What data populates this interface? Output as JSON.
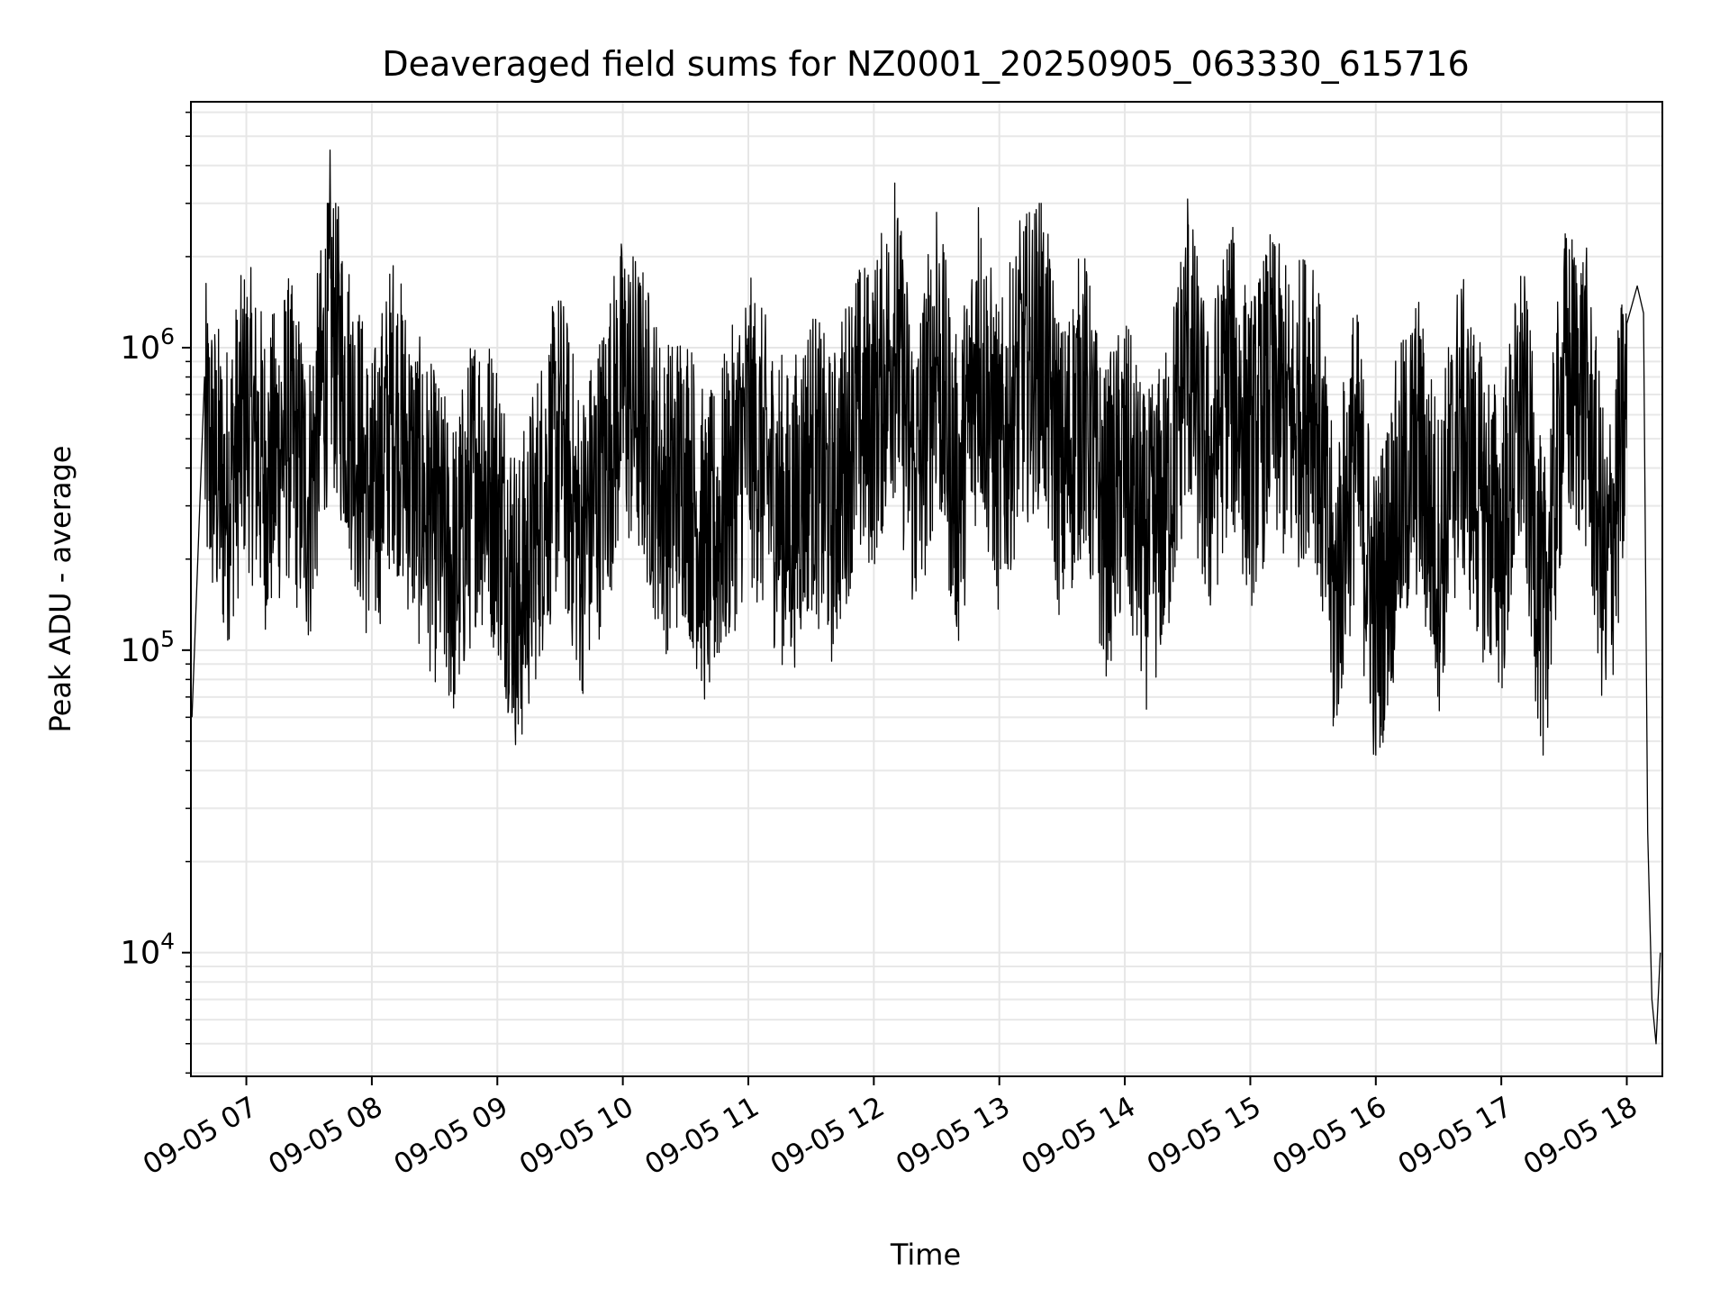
{
  "chart_data": {
    "type": "line",
    "title": "Deaveraged field sums for NZ0001_20250905_063330_615716",
    "xlabel": "Time",
    "ylabel": "Peak ADU - average",
    "yscale": "log",
    "grid": true,
    "xlim": [
      "09-05 06:33:30",
      "09-05 18:17"
    ],
    "ylim": [
      3900,
      6500000
    ],
    "x_ticks": [
      "09-05 07",
      "09-05 08",
      "09-05 09",
      "09-05 10",
      "09-05 11",
      "09-05 12",
      "09-05 13",
      "09-05 14",
      "09-05 15",
      "09-05 16",
      "09-05 17",
      "09-05 18"
    ],
    "y_ticks": [
      {
        "base": "10",
        "exp": "4",
        "value": 10000
      },
      {
        "base": "10",
        "exp": "5",
        "value": 100000
      },
      {
        "base": "10",
        "exp": "6",
        "value": 1000000
      }
    ],
    "series": [
      {
        "color": "#000000",
        "x": [
          "09-05 06:34",
          "09-05 06:40",
          "09-05 06:50",
          "09-05 07:00",
          "09-05 07:10",
          "09-05 07:20",
          "09-05 07:30",
          "09-05 07:40",
          "09-05 07:50",
          "09-05 08:00",
          "09-05 08:10",
          "09-05 08:20",
          "09-05 08:30",
          "09-05 08:40",
          "09-05 08:50",
          "09-05 09:00",
          "09-05 09:10",
          "09-05 09:20",
          "09-05 09:30",
          "09-05 09:40",
          "09-05 09:50",
          "09-05 10:00",
          "09-05 10:10",
          "09-05 10:20",
          "09-05 10:30",
          "09-05 10:40",
          "09-05 10:50",
          "09-05 11:00",
          "09-05 11:10",
          "09-05 11:20",
          "09-05 11:30",
          "09-05 11:40",
          "09-05 11:50",
          "09-05 12:00",
          "09-05 12:10",
          "09-05 12:20",
          "09-05 12:30",
          "09-05 12:40",
          "09-05 12:50",
          "09-05 13:00",
          "09-05 13:10",
          "09-05 13:20",
          "09-05 13:30",
          "09-05 13:40",
          "09-05 13:50",
          "09-05 14:00",
          "09-05 14:10",
          "09-05 14:20",
          "09-05 14:30",
          "09-05 14:40",
          "09-05 14:50",
          "09-05 15:00",
          "09-05 15:10",
          "09-05 15:20",
          "09-05 15:30",
          "09-05 15:40",
          "09-05 15:50",
          "09-05 16:00",
          "09-05 16:10",
          "09-05 16:20",
          "09-05 16:30",
          "09-05 16:40",
          "09-05 16:50",
          "09-05 17:00",
          "09-05 17:10",
          "09-05 17:20",
          "09-05 17:30",
          "09-05 17:40",
          "09-05 17:50",
          "09-05 18:00",
          "09-05 18:05",
          "09-05 18:08",
          "09-05 18:10",
          "09-05 18:12",
          "09-05 18:14",
          "09-05 18:16"
        ],
        "y": [
          60000,
          800000,
          300000,
          1200000,
          400000,
          900000,
          300000,
          4500000,
          1100000,
          250000,
          1300000,
          400000,
          200000,
          100000,
          500000,
          300000,
          57000,
          250000,
          800000,
          150000,
          450000,
          1700000,
          1000000,
          300000,
          500000,
          120000,
          300000,
          900000,
          400000,
          200000,
          600000,
          250000,
          1000000,
          1100000,
          3500000,
          400000,
          2800000,
          300000,
          2900000,
          500000,
          2000000,
          3000000,
          400000,
          1500000,
          200000,
          500000,
          130000,
          300000,
          3100000,
          400000,
          2200000,
          600000,
          1700000,
          900000,
          1800000,
          60000,
          700000,
          45000,
          250000,
          700000,
          120000,
          1000000,
          300000,
          150000,
          1300000,
          45000,
          1800000,
          1600000,
          80000,
          1200000,
          1600000,
          1300000,
          25000,
          7000,
          5000,
          10000
        ]
      }
    ]
  }
}
